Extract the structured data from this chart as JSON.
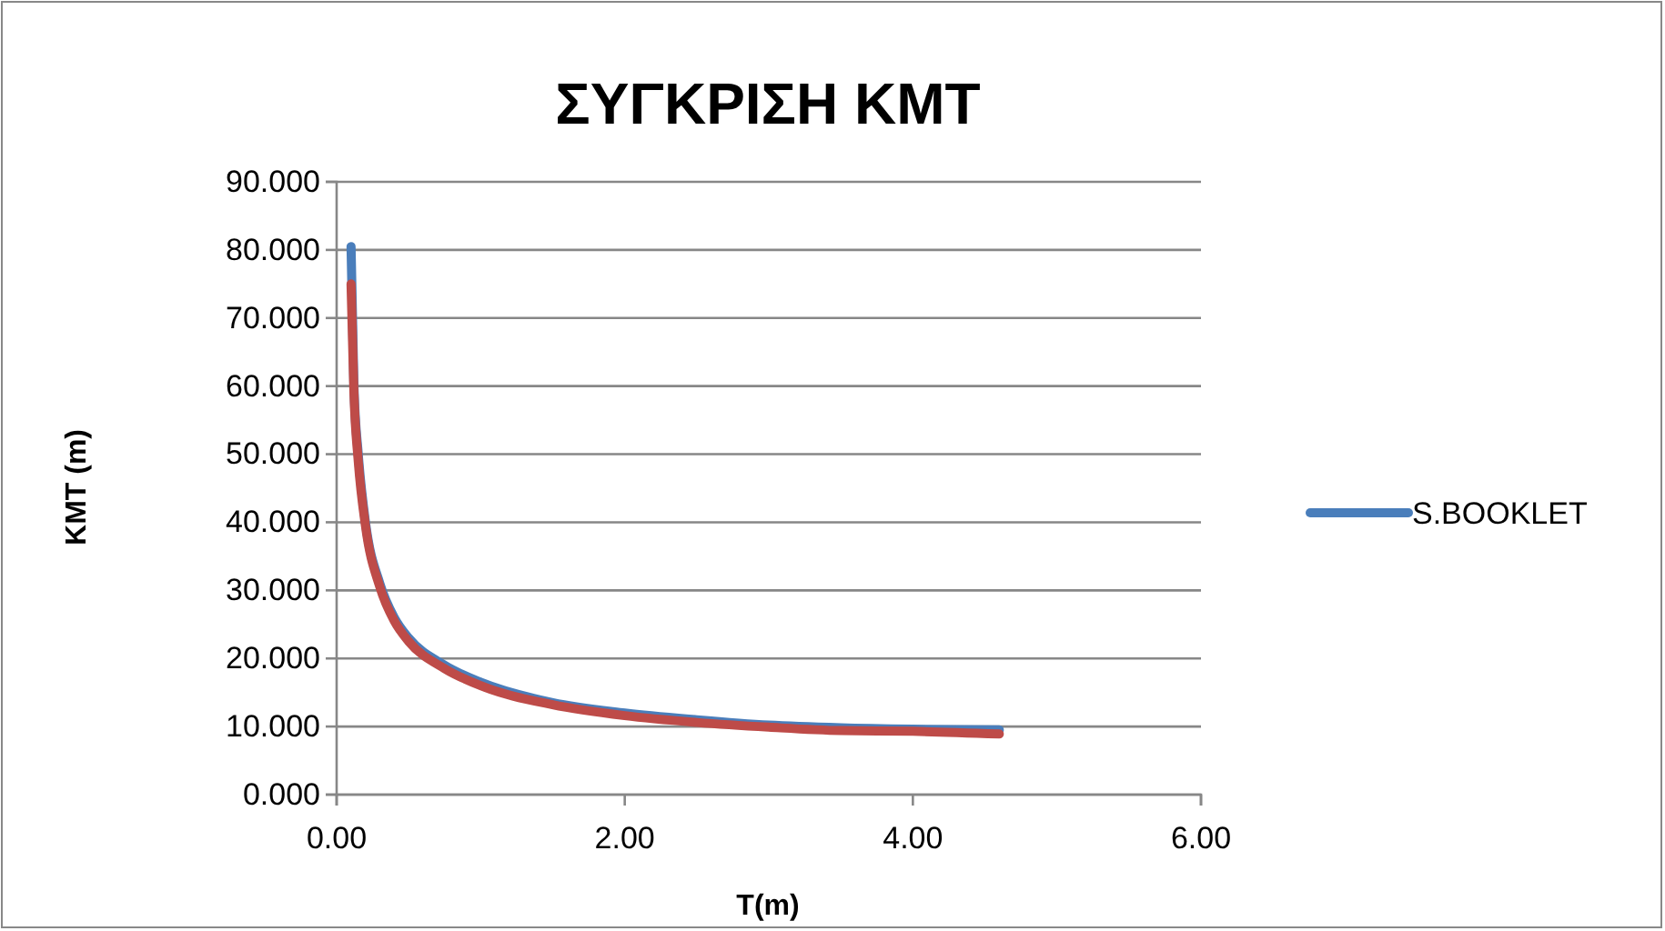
{
  "chart_data": {
    "type": "line",
    "title": "ΣΥΓΚΡΙΣΗ ΚΜΤ",
    "xlabel": "T(m)",
    "ylabel": "KMT (m)",
    "xlim": [
      0,
      6
    ],
    "xticks": [
      {
        "value": 0,
        "label": "0.00"
      },
      {
        "value": 2,
        "label": "2.00"
      },
      {
        "value": 4,
        "label": "4.00"
      },
      {
        "value": 6,
        "label": "6.00"
      }
    ],
    "ylim": [
      0,
      90
    ],
    "yticks": [
      {
        "value": 0,
        "label": "0.000"
      },
      {
        "value": 10,
        "label": "10.000"
      },
      {
        "value": 20,
        "label": "20.000"
      },
      {
        "value": 30,
        "label": "30.000"
      },
      {
        "value": 40,
        "label": "40.000"
      },
      {
        "value": 50,
        "label": "50.000"
      },
      {
        "value": 60,
        "label": "60.000"
      },
      {
        "value": 70,
        "label": "70.000"
      },
      {
        "value": 80,
        "label": "80.000"
      },
      {
        "value": 90,
        "label": "90.000"
      }
    ],
    "grid": "y",
    "legend": "right",
    "marker": "none",
    "series": [
      {
        "name": "S.BOOKLET",
        "color": "#4a7ebb",
        "x": [
          0.1,
          0.12,
          0.15,
          0.2,
          0.3,
          0.4,
          0.5,
          0.75,
          1,
          1.5,
          2,
          2.5,
          3,
          3.5,
          4,
          4.6
        ],
        "values": [
          80.5,
          60,
          50,
          40,
          31,
          26,
          23,
          19,
          16.5,
          13.5,
          12,
          11,
          10.2,
          9.8,
          9.6,
          9.5
        ]
      },
      {
        "color": "#be4b48",
        "x": [
          0.1,
          0.12,
          0.15,
          0.2,
          0.3,
          0.4,
          0.5,
          0.75,
          1,
          1.5,
          2,
          2.5,
          3,
          3.5,
          4,
          4.6
        ],
        "values": [
          75,
          59,
          49,
          39.5,
          30.5,
          25.5,
          22.5,
          18.5,
          16,
          13.2,
          11.6,
          10.6,
          9.9,
          9.4,
          9.3,
          8.9
        ]
      }
    ]
  }
}
